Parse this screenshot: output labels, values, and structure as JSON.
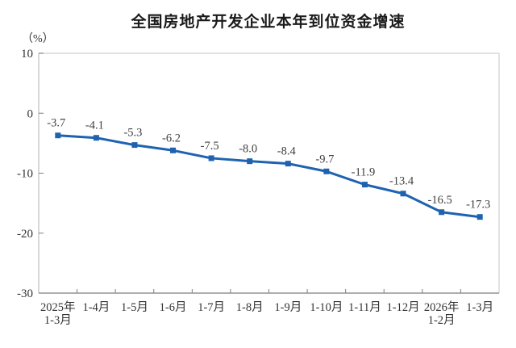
{
  "chart": {
    "title": "全国房地产开发企业本年到位资金增速",
    "unit_label": "（%）"
  },
  "chart_data": {
    "type": "line",
    "title": "全国房地产开发企业本年到位资金增速",
    "ylabel": "（%）",
    "xlabel": "",
    "categories": [
      [
        "2025年",
        "1-3月"
      ],
      [
        "1-4月"
      ],
      [
        "1-5月"
      ],
      [
        "1-6月"
      ],
      [
        "1-7月"
      ],
      [
        "1-8月"
      ],
      [
        "1-9月"
      ],
      [
        "1-10月"
      ],
      [
        "1-11月"
      ],
      [
        "1-12月"
      ],
      [
        "2026年",
        "1-2月"
      ],
      [
        "1-3月"
      ]
    ],
    "values": [
      -3.7,
      -4.1,
      -5.3,
      -6.2,
      -7.5,
      -8.0,
      -8.4,
      -9.7,
      -11.9,
      -13.4,
      -16.5,
      -17.3
    ],
    "value_labels": [
      "-3.7",
      "-4.1",
      "-5.3",
      "-6.2",
      "-7.5",
      "-8.0",
      "-8.4",
      "-9.7",
      "-11.9",
      "-13.4",
      "-16.5",
      "-17.3"
    ],
    "ylim": [
      -30,
      10
    ],
    "yticks": [
      10,
      0,
      -10,
      -20,
      -30
    ],
    "grid": false,
    "legend": "none",
    "colors": {
      "line": "#1f63b0",
      "marker": "#1f63b0",
      "data_label": "#404040",
      "axis_text": "#333333",
      "axis_bottom": "#7f7f7f",
      "axis_left": "#bfbfbf",
      "border_light": "#d9d9d9",
      "tick": "#7f7f7f"
    }
  }
}
